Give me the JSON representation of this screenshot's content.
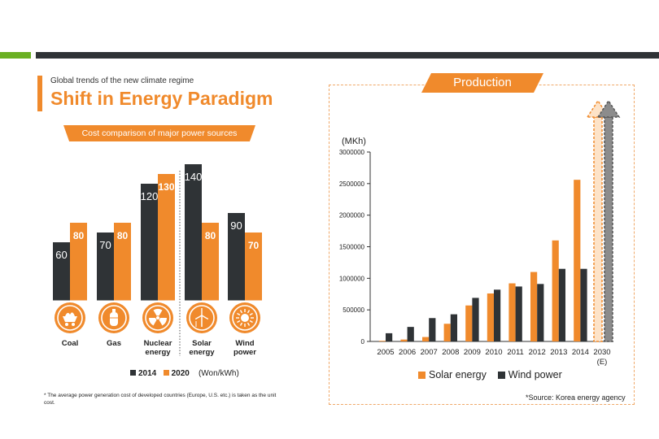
{
  "colors": {
    "orange": "#f08a2c",
    "dark": "#2f3336",
    "green": "#6ab023",
    "gray_arrow": "#8c8c8c"
  },
  "header": {
    "subtitle": "Global trends of the new climate regime",
    "title": "Shift in Energy Paradigm"
  },
  "left": {
    "ribbon": "Cost comparison of major power sources",
    "legend": {
      "s2014": "2014",
      "s2020": "2020",
      "unit": "(Won/kWh)"
    },
    "footnote": "* The average power generation cost of developed countries (Europe, U.S. etc.) is taken as the unit cost."
  },
  "right": {
    "banner": "Production",
    "unit": "(MKh)",
    "legend": {
      "solar": "Solar energy",
      "wind": "Wind power"
    },
    "source": "*Source: Korea energy agency"
  },
  "chart_data": [
    {
      "type": "bar",
      "categories": [
        "Coal",
        "Gas",
        "Nuclear energy",
        "Solar energy",
        "Wind power"
      ],
      "category_lines": [
        [
          "Coal"
        ],
        [
          "Gas"
        ],
        [
          "Nuclear",
          "energy"
        ],
        [
          "Solar",
          "energy"
        ],
        [
          "Wind",
          "power"
        ]
      ],
      "icons": [
        "coal-cart-icon",
        "gas-cylinder-icon",
        "radiation-icon",
        "wind-turbine-icon",
        "sun-icon"
      ],
      "series": [
        {
          "name": "2014",
          "color": "#2f3336",
          "values": [
            60,
            70,
            120,
            140,
            90
          ]
        },
        {
          "name": "2020",
          "color": "#f08a2c",
          "values": [
            80,
            80,
            130,
            80,
            70
          ]
        }
      ],
      "unit": "(Won/kWh)",
      "ylim": [
        0,
        150
      ],
      "divider_before": "Solar energy"
    },
    {
      "type": "bar",
      "categories": [
        "2005",
        "2006",
        "2007",
        "2008",
        "2009",
        "2010",
        "2011",
        "2012",
        "2013",
        "2014",
        "2030"
      ],
      "category_sublabels": {
        "2030": "(E)"
      },
      "ylabel": "(MKh)",
      "ylim": [
        0,
        3000000
      ],
      "yticks": [
        0,
        500000,
        1000000,
        1500000,
        2000000,
        2500000,
        3000000
      ],
      "grid": false,
      "legend": "bottom",
      "series": [
        {
          "name": "Solar energy",
          "color": "#f08a2c",
          "values": [
            10000,
            30000,
            70000,
            280000,
            570000,
            760000,
            920000,
            1100000,
            1600000,
            2560000,
            null
          ]
        },
        {
          "name": "Wind power",
          "color": "#2f3336",
          "values": [
            130000,
            230000,
            370000,
            430000,
            690000,
            820000,
            870000,
            910000,
            1150000,
            1150000,
            null
          ]
        }
      ],
      "projection": "2030 shown as upward dashed arrows for both series"
    }
  ]
}
